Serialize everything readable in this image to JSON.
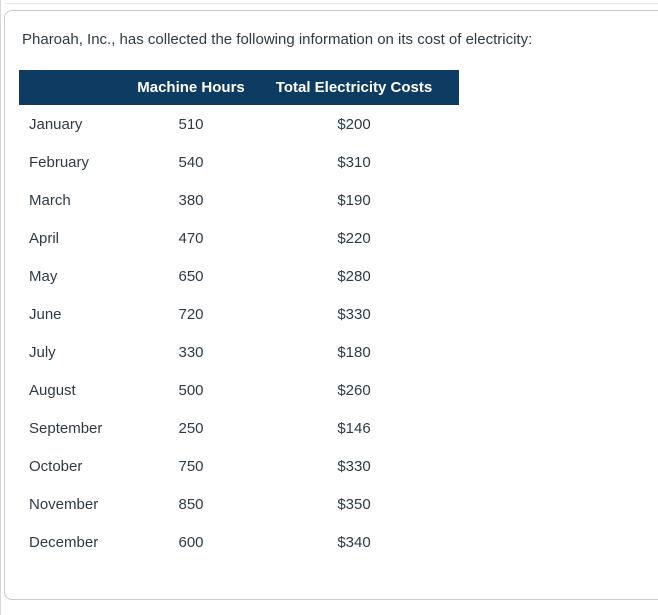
{
  "intro_text": "Pharoah, Inc., has collected the following information on its cost of electricity:",
  "table": {
    "headers": {
      "machine_hours": "Machine Hours",
      "total_costs": "Total Electricity Costs"
    },
    "rows": [
      {
        "month": "January",
        "hours": "510",
        "cost": "$200"
      },
      {
        "month": "February",
        "hours": "540",
        "cost": "$310"
      },
      {
        "month": "March",
        "hours": "380",
        "cost": "$190"
      },
      {
        "month": "April",
        "hours": "470",
        "cost": "$220"
      },
      {
        "month": "May",
        "hours": "650",
        "cost": "$280"
      },
      {
        "month": "June",
        "hours": "720",
        "cost": "$330"
      },
      {
        "month": "July",
        "hours": "330",
        "cost": "$180"
      },
      {
        "month": "August",
        "hours": "500",
        "cost": "$260"
      },
      {
        "month": "September",
        "hours": "250",
        "cost": "$146"
      },
      {
        "month": "October",
        "hours": "750",
        "cost": "$330"
      },
      {
        "month": "November",
        "hours": "850",
        "cost": "$350"
      },
      {
        "month": "December",
        "hours": "600",
        "cost": "$340"
      }
    ]
  },
  "colors": {
    "header_bg": "#0d3b61",
    "header_text": "#ffffff",
    "body_text": "#2d3b45",
    "card_border": "#c7cdd1"
  }
}
